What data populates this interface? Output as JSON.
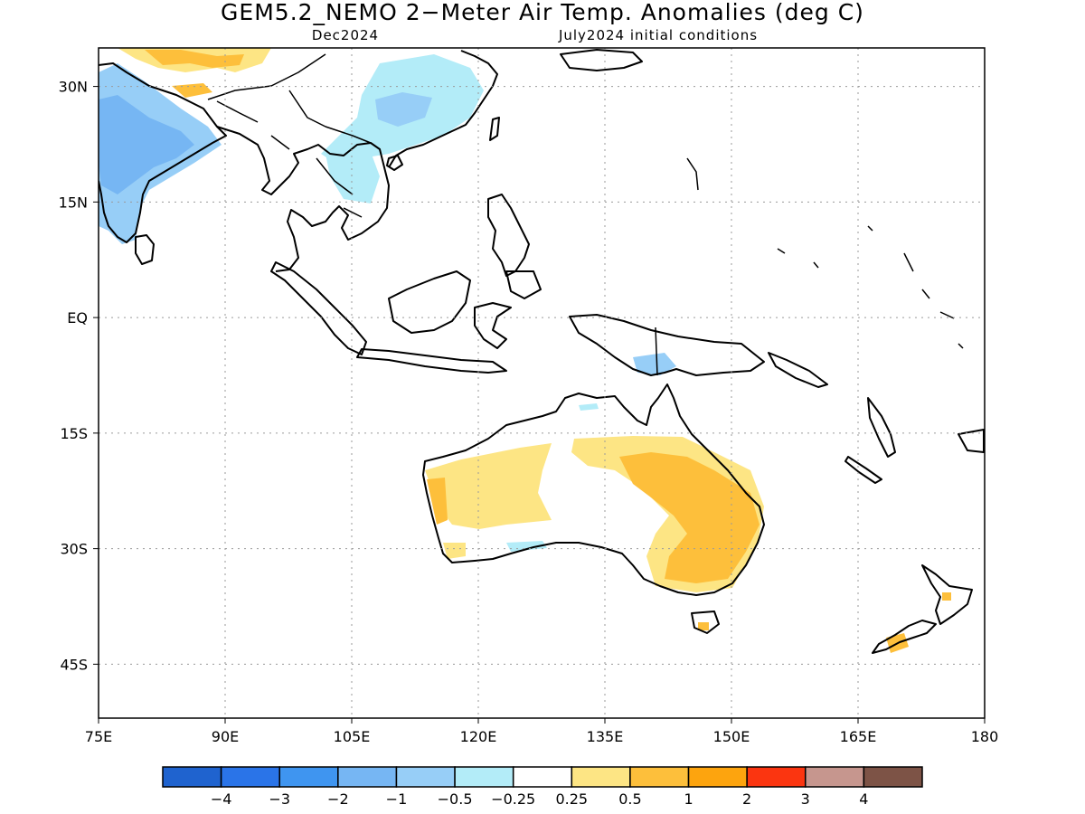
{
  "title": "GEM5.2_NEMO 2−Meter Air Temp. Anomalies (deg C)",
  "subtitle_left": "Dec2024",
  "subtitle_right": "July2024 initial conditions",
  "map": {
    "lon_range": [
      75,
      180
    ],
    "lat_range": [
      -52,
      35
    ],
    "lon_ticks": [
      "75E",
      "90E",
      "105E",
      "120E",
      "135E",
      "150E",
      "165E",
      "180"
    ],
    "lat_ticks": [
      "30N",
      "15N",
      "EQ",
      "15S",
      "30S",
      "45S"
    ],
    "grid": "dotted"
  },
  "colorbar": {
    "colors": [
      "#1f63cf",
      "#2a74e8",
      "#3f95f0",
      "#76b6f3",
      "#97cef7",
      "#b3ecf8",
      "#ffffff",
      "#fde584",
      "#fdbf3b",
      "#fda40e",
      "#fb3510",
      "#c6968e",
      "#7d5346"
    ],
    "labels": [
      "−4",
      "−3",
      "−2",
      "−1",
      "−0.5",
      "−0.25",
      "0.25",
      "0.5",
      "1",
      "2",
      "3",
      "4"
    ]
  }
}
